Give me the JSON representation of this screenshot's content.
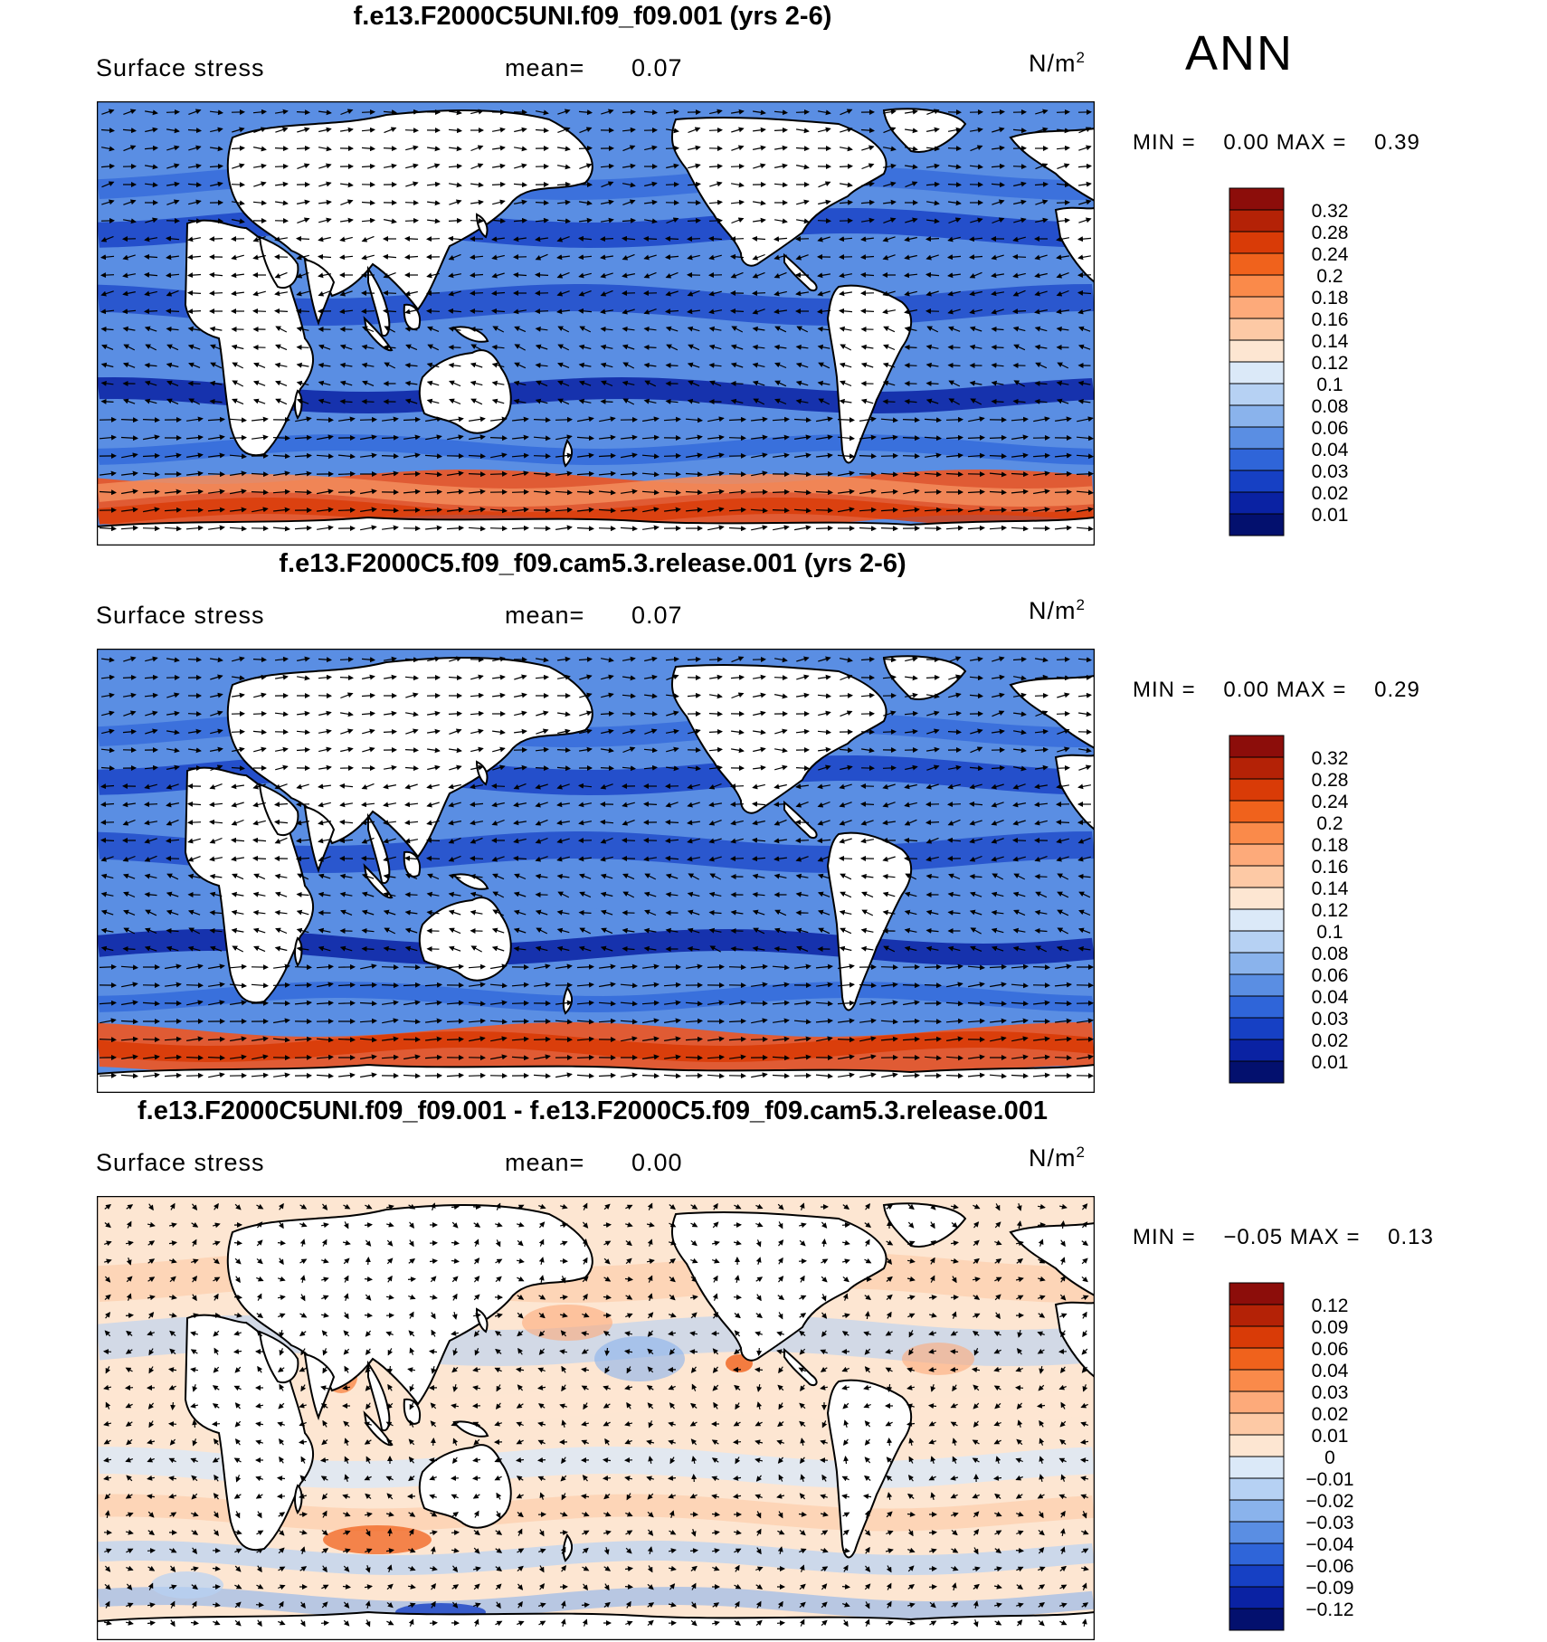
{
  "season": "ANN",
  "panels": [
    {
      "title": "f.e13.F2000C5UNI.f09_f09.001 (yrs 2-6)",
      "field": "Surface stress",
      "mean_label": "mean=",
      "mean_value": "0.07",
      "units_base": "N/m",
      "units_exp": "2",
      "min_label": "MIN =",
      "min_value": "0.00",
      "max_label": "MAX =",
      "max_value": "0.39",
      "legend_labels": [
        "0.32",
        "0.28",
        "0.24",
        "0.2",
        "0.18",
        "0.16",
        "0.14",
        "0.12",
        "0.1",
        "0.08",
        "0.06",
        "0.04",
        "0.03",
        "0.02",
        "0.01"
      ],
      "legend_colors": [
        "#8c0d0a",
        "#b42206",
        "#d93b07",
        "#f0621c",
        "#fa8a4a",
        "#fdaa7a",
        "#fdc9a5",
        "#fde6d2",
        "#dbe9f8",
        "#b6d1f3",
        "#8ab3ec",
        "#5a8ee3",
        "#2f65d9",
        "#1640c4",
        "#0a22a3",
        "#03106e"
      ]
    },
    {
      "title": "f.e13.F2000C5.f09_f09.cam5.3.release.001 (yrs 2-6)",
      "field": "Surface stress",
      "mean_label": "mean=",
      "mean_value": "0.07",
      "units_base": "N/m",
      "units_exp": "2",
      "min_label": "MIN =",
      "min_value": "0.00",
      "max_label": "MAX =",
      "max_value": "0.29",
      "legend_labels": [
        "0.32",
        "0.28",
        "0.24",
        "0.2",
        "0.18",
        "0.16",
        "0.14",
        "0.12",
        "0.1",
        "0.08",
        "0.06",
        "0.04",
        "0.03",
        "0.02",
        "0.01"
      ],
      "legend_colors": [
        "#8c0d0a",
        "#b42206",
        "#d93b07",
        "#f0621c",
        "#fa8a4a",
        "#fdaa7a",
        "#fdc9a5",
        "#fde6d2",
        "#dbe9f8",
        "#b6d1f3",
        "#8ab3ec",
        "#5a8ee3",
        "#2f65d9",
        "#1640c4",
        "#0a22a3",
        "#03106e"
      ]
    },
    {
      "title": "f.e13.F2000C5UNI.f09_f09.001 - f.e13.F2000C5.f09_f09.cam5.3.release.001",
      "field": "Surface stress",
      "mean_label": "mean=",
      "mean_value": "0.00",
      "units_base": "N/m",
      "units_exp": "2",
      "min_label": "MIN =",
      "min_value": "−0.05",
      "max_label": "MAX =",
      "max_value": "0.13",
      "legend_labels": [
        "0.12",
        "0.09",
        "0.06",
        "0.04",
        "0.03",
        "0.02",
        "0.01",
        "0",
        "−0.01",
        "−0.02",
        "−0.03",
        "−0.04",
        "−0.06",
        "−0.09",
        "−0.12"
      ],
      "legend_colors": [
        "#8c0d0a",
        "#b42206",
        "#d93b07",
        "#f0621c",
        "#fa8a4a",
        "#fdaa7a",
        "#fdc9a5",
        "#fde6d2",
        "#dbe9f8",
        "#b6d1f3",
        "#8ab3ec",
        "#5a8ee3",
        "#2f65d9",
        "#1640c4",
        "#0a22a3",
        "#03106e"
      ]
    }
  ]
}
